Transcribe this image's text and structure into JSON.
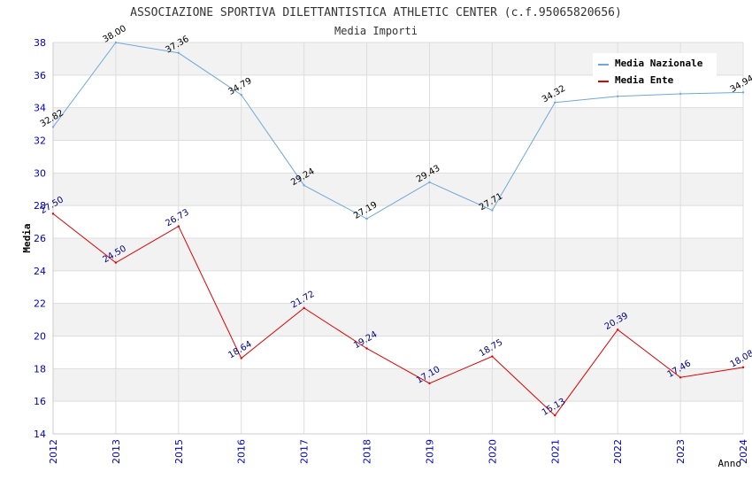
{
  "chart_data": {
    "type": "line",
    "title": "ASSOCIAZIONE SPORTIVA DILETTANTISTICA ATHLETIC CENTER (c.f.95065820656)",
    "subtitle": "Media Importi",
    "xlabel": "Anno",
    "ylabel": "Media",
    "ylim": [
      14,
      38
    ],
    "yticks": [
      14,
      16,
      18,
      20,
      22,
      24,
      26,
      28,
      30,
      32,
      34,
      36,
      38
    ],
    "categories": [
      "2012",
      "2013",
      "2015",
      "2016",
      "2017",
      "2018",
      "2019",
      "2020",
      "2021",
      "2022",
      "2023",
      "2024"
    ],
    "grid": true,
    "legend_position": "top-right",
    "series": [
      {
        "name": "Media Nazionale",
        "color": "#6fa8dc",
        "label_color": "#000000",
        "values": [
          32.82,
          38.0,
          37.36,
          34.79,
          29.24,
          27.19,
          29.43,
          27.71,
          34.32,
          34.7,
          34.85,
          34.94
        ],
        "labels": [
          "32.82",
          "38.00",
          "37.36",
          "34.79",
          "29.24",
          "27.19",
          "29.43",
          "27.71",
          "34.32",
          "",
          "",
          "34.94"
        ]
      },
      {
        "name": "Media Ente",
        "color": "#e00000",
        "label_color": "#000080",
        "values": [
          27.5,
          24.5,
          26.73,
          18.64,
          21.72,
          19.24,
          17.1,
          18.75,
          15.13,
          20.39,
          17.46,
          18.08
        ],
        "labels": [
          "27.50",
          "24.50",
          "26.73",
          "18.64",
          "21.72",
          "19.24",
          "17.10",
          "18.75",
          "15.13",
          "20.39",
          "17.46",
          "18.08"
        ]
      }
    ]
  },
  "colors": {
    "band": "#f2f2f2",
    "gridline": "#dddddd",
    "axis_tick_label": "#0000cc",
    "title": "#333333"
  }
}
